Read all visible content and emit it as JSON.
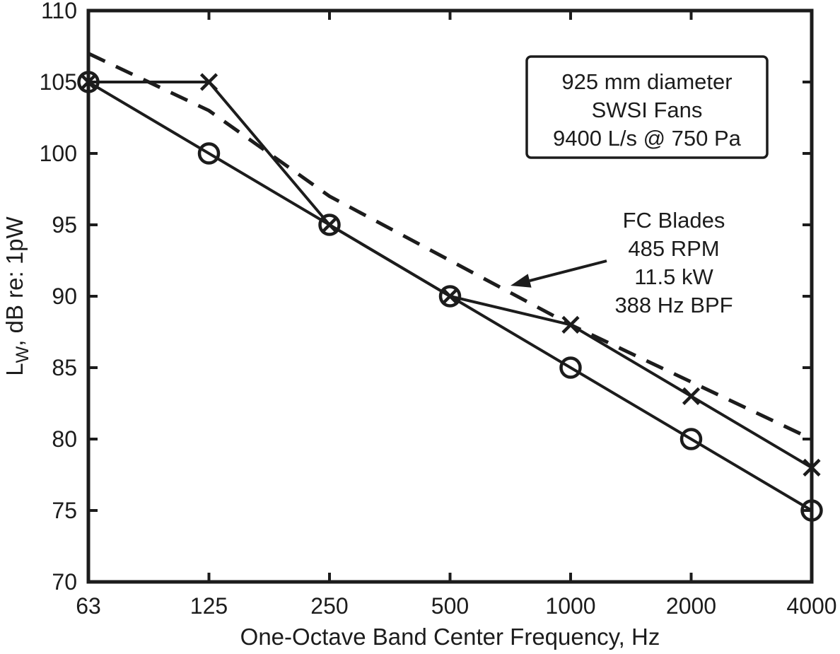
{
  "page": {
    "background": "#ffffff",
    "ink": "#1c1c1c"
  },
  "chart_data": {
    "type": "line",
    "title": "",
    "xlabel": "One-Octave Band Center Frequency, Hz",
    "ylabel": "Lw, dB re: 1pW",
    "ylabel_parts": {
      "prefix": "L",
      "subscript": "W",
      "suffix": ", dB re: 1pW"
    },
    "x_scale": "octave-log (bands evenly spaced)",
    "categories": [
      63,
      125,
      250,
      500,
      1000,
      2000,
      4000
    ],
    "x_tick_labels": [
      "63",
      "125",
      "250",
      "500",
      "1000",
      "2000",
      "4000"
    ],
    "y_ticks": [
      70,
      75,
      80,
      85,
      90,
      95,
      100,
      105,
      110
    ],
    "ylim": [
      70,
      110
    ],
    "grid": false,
    "legend": "none",
    "series": [
      {
        "id": "fc-blades-dashed",
        "description": "dashed curve (labeled FC Blades by arrow annotation)",
        "line_style": "dashed",
        "marker": "none",
        "values": [
          107,
          103,
          97,
          92.5,
          88,
          84,
          80
        ]
      },
      {
        "id": "x-marker-fan",
        "description": "solid line with x markers",
        "line_style": "solid",
        "marker": "x",
        "values": [
          105,
          105,
          95,
          90,
          88,
          83,
          78
        ]
      },
      {
        "id": "circle-marker-fan",
        "description": "solid line with circle markers",
        "line_style": "solid",
        "marker": "circle",
        "values": [
          105,
          100,
          95,
          90,
          85,
          80,
          75
        ]
      }
    ],
    "info_box": {
      "lines": [
        "925 mm diameter",
        "SWSI Fans",
        "9400 L/s @ 750 Pa"
      ]
    },
    "annotation": {
      "lines": [
        "FC Blades",
        "485 RPM",
        "11.5 kW",
        "388 Hz BPF"
      ],
      "arrow_target": "dashed curve near 700 Hz"
    }
  }
}
